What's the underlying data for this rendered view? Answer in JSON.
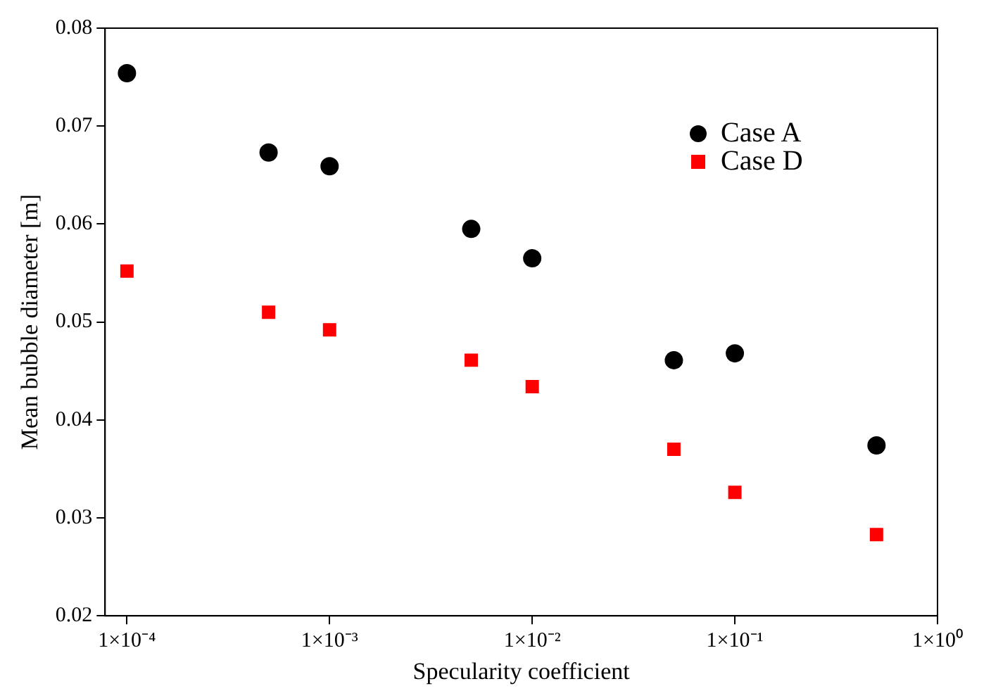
{
  "chart_data": {
    "type": "scatter",
    "xlabel": "Specularity coefficient",
    "ylabel": "Mean bubble diameter [m]",
    "log": "x",
    "xlim": [
      7.8e-05,
      1
    ],
    "xticks": [
      {
        "value": 0.0001,
        "label": "1×10⁻⁴"
      },
      {
        "value": 0.001,
        "label": "1×10⁻³"
      },
      {
        "value": 0.01,
        "label": "1×10⁻²"
      },
      {
        "value": 0.1,
        "label": "1×10⁻¹"
      },
      {
        "value": 1,
        "label": "1×10⁰"
      }
    ],
    "ylim": [
      0.02,
      0.08
    ],
    "yticks": [
      0.02,
      0.03,
      0.04,
      0.05,
      0.06,
      0.07,
      0.08
    ],
    "grid": false,
    "legend": "top right",
    "x": [
      0.0001,
      0.0005,
      0.001,
      0.005,
      0.01,
      0.05,
      0.1,
      0.5
    ],
    "series": [
      {
        "name": "Case A",
        "color": "#000000",
        "marker": "circle",
        "values": [
          0.0754,
          0.0673,
          0.0659,
          0.0595,
          0.0565,
          0.0461,
          0.0468,
          0.0374
        ]
      },
      {
        "name": "Case D",
        "color": "#ff0000",
        "marker": "square",
        "values": [
          0.0552,
          0.051,
          0.0492,
          0.0461,
          0.0434,
          0.037,
          0.0326,
          0.0283
        ]
      }
    ]
  }
}
